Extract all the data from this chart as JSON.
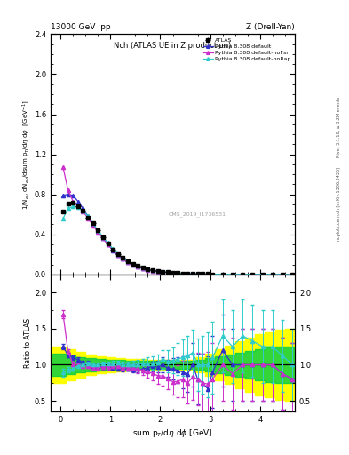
{
  "title_left": "13000 GeV  pp",
  "title_right": "Z (Drell-Yan)",
  "plot_title": "Nch (ATLAS UE in Z production)",
  "xlabel": "sum p$_T$/d$\\eta$ d$\\phi$ [GeV]",
  "ylabel_main": "1/N$_{ev}$ dN$_{ev}$/dsum p$_T$/d$\\eta$ d$\\phi$  [GeV$^{-1}$]",
  "ylabel_ratio": "Ratio to ATLAS",
  "right_label_top": "Rivet 3.1.10, ≥ 3.2M events",
  "right_label_bot": "mcplots.cern.ch [arXiv:1306.3436]",
  "watermark": "CMS_2019_I1736531",
  "xlim": [
    -0.2,
    4.7
  ],
  "ylim_main": [
    0.0,
    2.4
  ],
  "ylim_ratio": [
    0.35,
    2.25
  ],
  "atlas_x": [
    0.05,
    0.15,
    0.25,
    0.35,
    0.45,
    0.55,
    0.65,
    0.75,
    0.85,
    0.95,
    1.05,
    1.15,
    1.25,
    1.35,
    1.45,
    1.55,
    1.65,
    1.75,
    1.85,
    1.95,
    2.05,
    2.15,
    2.25,
    2.35,
    2.45,
    2.55,
    2.65,
    2.75,
    2.85,
    2.95,
    3.05,
    3.25,
    3.45,
    3.65,
    3.85,
    4.05,
    4.25,
    4.45,
    4.65
  ],
  "atlas_y": [
    0.63,
    0.71,
    0.72,
    0.68,
    0.64,
    0.57,
    0.51,
    0.44,
    0.37,
    0.31,
    0.25,
    0.2,
    0.165,
    0.132,
    0.105,
    0.083,
    0.066,
    0.052,
    0.041,
    0.033,
    0.026,
    0.021,
    0.017,
    0.013,
    0.01,
    0.008,
    0.006,
    0.005,
    0.004,
    0.003,
    0.002,
    0.001,
    0.0008,
    0.0005,
    0.0003,
    0.0002,
    0.00012,
    8e-05,
    5e-05
  ],
  "atlas_xerr": [
    0.05,
    0.05,
    0.05,
    0.05,
    0.05,
    0.05,
    0.05,
    0.05,
    0.05,
    0.05,
    0.05,
    0.05,
    0.05,
    0.05,
    0.05,
    0.05,
    0.05,
    0.05,
    0.05,
    0.05,
    0.05,
    0.05,
    0.05,
    0.05,
    0.05,
    0.05,
    0.05,
    0.05,
    0.05,
    0.05,
    0.05,
    0.15,
    0.15,
    0.15,
    0.15,
    0.15,
    0.15,
    0.15,
    0.15
  ],
  "atlas_yerr": [
    0.018,
    0.018,
    0.018,
    0.018,
    0.016,
    0.015,
    0.013,
    0.011,
    0.009,
    0.007,
    0.006,
    0.005,
    0.004,
    0.003,
    0.003,
    0.002,
    0.002,
    0.0015,
    0.0012,
    0.001,
    0.0008,
    0.0007,
    0.0006,
    0.0005,
    0.0004,
    0.0003,
    0.0002,
    0.00018,
    0.00012,
    0.0001,
    7e-05,
    5e-05,
    4e-05,
    3e-05,
    2e-05,
    1e-05,
    8e-06,
    5e-06,
    3e-06
  ],
  "py_default_x": [
    0.05,
    0.15,
    0.25,
    0.35,
    0.45,
    0.55,
    0.65,
    0.75,
    0.85,
    0.95,
    1.05,
    1.15,
    1.25,
    1.35,
    1.45,
    1.55,
    1.65,
    1.75,
    1.85,
    1.95,
    2.05,
    2.15,
    2.25,
    2.35,
    2.45,
    2.55,
    2.65,
    2.75,
    2.85,
    2.95,
    3.05,
    3.25,
    3.45,
    3.65,
    3.85,
    4.05,
    4.25,
    4.45,
    4.65
  ],
  "py_default_y": [
    0.79,
    0.8,
    0.79,
    0.73,
    0.66,
    0.58,
    0.5,
    0.43,
    0.36,
    0.3,
    0.24,
    0.19,
    0.155,
    0.125,
    0.098,
    0.078,
    0.062,
    0.05,
    0.04,
    0.032,
    0.026,
    0.02,
    0.016,
    0.012,
    0.009,
    0.007,
    0.006,
    0.004,
    0.003,
    0.002,
    0.0018,
    0.0012,
    0.0008,
    0.0005,
    0.0003,
    0.0002,
    0.00012,
    7e-05,
    4e-05
  ],
  "py_nofsr_x": [
    0.05,
    0.15,
    0.25,
    0.35,
    0.45,
    0.55,
    0.65,
    0.75,
    0.85,
    0.95,
    1.05,
    1.15,
    1.25,
    1.35,
    1.45,
    1.55,
    1.65,
    1.75,
    1.85,
    1.95,
    2.05,
    2.15,
    2.25,
    2.35,
    2.45,
    2.55,
    2.65,
    2.75,
    2.85,
    2.95,
    3.05,
    3.25,
    3.45,
    3.65,
    3.85,
    4.05,
    4.25,
    4.45,
    4.65
  ],
  "py_nofsr_y": [
    1.07,
    0.84,
    0.73,
    0.68,
    0.63,
    0.56,
    0.49,
    0.42,
    0.36,
    0.3,
    0.245,
    0.196,
    0.158,
    0.127,
    0.1,
    0.078,
    0.061,
    0.047,
    0.036,
    0.028,
    0.022,
    0.017,
    0.013,
    0.01,
    0.008,
    0.006,
    0.005,
    0.004,
    0.003,
    0.0022,
    0.0016,
    0.001,
    0.0007,
    0.0005,
    0.0003,
    0.0002,
    0.00012,
    7e-05,
    4e-05
  ],
  "py_norap_x": [
    0.05,
    0.15,
    0.25,
    0.35,
    0.45,
    0.55,
    0.65,
    0.75,
    0.85,
    0.95,
    1.05,
    1.15,
    1.25,
    1.35,
    1.45,
    1.55,
    1.65,
    1.75,
    1.85,
    1.95,
    2.05,
    2.15,
    2.25,
    2.35,
    2.45,
    2.55,
    2.65,
    2.75,
    2.85,
    2.95,
    3.05,
    3.25,
    3.45,
    3.65,
    3.85,
    4.05,
    4.25,
    4.45,
    4.65
  ],
  "py_norap_y": [
    0.56,
    0.66,
    0.68,
    0.67,
    0.64,
    0.58,
    0.51,
    0.44,
    0.375,
    0.315,
    0.255,
    0.205,
    0.165,
    0.133,
    0.105,
    0.084,
    0.067,
    0.053,
    0.042,
    0.034,
    0.028,
    0.022,
    0.018,
    0.014,
    0.011,
    0.009,
    0.007,
    0.005,
    0.004,
    0.003,
    0.0022,
    0.0014,
    0.001,
    0.0007,
    0.0004,
    0.00025,
    0.00015,
    9e-05,
    5e-05
  ],
  "color_atlas": "#000000",
  "color_default": "#3030cc",
  "color_nofsr": "#cc30cc",
  "color_norap": "#30cccc",
  "color_band_yellow": "#ffff00",
  "color_band_green": "#00cc44",
  "ratio_x": [
    0.05,
    0.15,
    0.25,
    0.35,
    0.45,
    0.55,
    0.65,
    0.75,
    0.85,
    0.95,
    1.05,
    1.15,
    1.25,
    1.35,
    1.45,
    1.55,
    1.65,
    1.75,
    1.85,
    1.95,
    2.05,
    2.15,
    2.25,
    2.35,
    2.45,
    2.55,
    2.65,
    2.75,
    2.85,
    2.95,
    3.05,
    3.25,
    3.45,
    3.65,
    3.85,
    4.05,
    4.25,
    4.45,
    4.65
  ],
  "ratio_default_y": [
    1.25,
    1.13,
    1.1,
    1.07,
    1.03,
    1.02,
    0.98,
    0.98,
    0.97,
    0.97,
    0.96,
    0.95,
    0.94,
    0.95,
    0.93,
    0.94,
    0.94,
    0.96,
    0.976,
    0.97,
    1.0,
    0.952,
    0.941,
    0.923,
    0.9,
    0.875,
    1.0,
    0.8,
    0.75,
    0.667,
    0.9,
    1.2,
    1.0,
    1.0,
    1.0,
    1.0,
    1.0,
    0.875,
    0.8
  ],
  "ratio_default_yerr": [
    0.04,
    0.03,
    0.03,
    0.03,
    0.03,
    0.03,
    0.03,
    0.03,
    0.03,
    0.03,
    0.03,
    0.03,
    0.035,
    0.035,
    0.04,
    0.04,
    0.05,
    0.06,
    0.07,
    0.08,
    0.1,
    0.12,
    0.15,
    0.18,
    0.22,
    0.25,
    0.3,
    0.35,
    0.4,
    0.45,
    0.5,
    0.5,
    0.5,
    0.5,
    0.5,
    0.5,
    0.5,
    0.5,
    0.5
  ],
  "ratio_nofsr_y": [
    1.7,
    1.18,
    1.01,
    1.0,
    0.984,
    0.982,
    0.961,
    0.955,
    0.973,
    0.968,
    0.98,
    0.98,
    0.958,
    0.962,
    0.952,
    0.94,
    0.924,
    0.904,
    0.878,
    0.848,
    0.846,
    0.81,
    0.765,
    0.769,
    0.8,
    0.75,
    0.833,
    0.8,
    0.75,
    0.733,
    0.8,
    1.0,
    0.875,
    1.0,
    1.0,
    1.0,
    1.0,
    0.875,
    0.8
  ],
  "ratio_nofsr_yerr": [
    0.05,
    0.04,
    0.03,
    0.03,
    0.03,
    0.03,
    0.03,
    0.03,
    0.03,
    0.03,
    0.035,
    0.035,
    0.04,
    0.04,
    0.05,
    0.06,
    0.07,
    0.08,
    0.09,
    0.11,
    0.13,
    0.15,
    0.18,
    0.22,
    0.25,
    0.28,
    0.32,
    0.36,
    0.4,
    0.45,
    0.5,
    0.5,
    0.5,
    0.5,
    0.5,
    0.5,
    0.5,
    0.5,
    0.5
  ],
  "ratio_norap_y": [
    0.89,
    0.93,
    0.944,
    0.985,
    1.0,
    1.018,
    1.0,
    1.0,
    1.014,
    1.016,
    1.02,
    1.025,
    1.0,
    1.008,
    1.0,
    1.012,
    1.015,
    1.019,
    1.024,
    1.03,
    1.077,
    1.048,
    1.059,
    1.077,
    1.1,
    1.125,
    1.167,
    1.0,
    1.0,
    1.0,
    1.1,
    1.4,
    1.25,
    1.4,
    1.33,
    1.25,
    1.25,
    1.125,
    1.0
  ],
  "ratio_norap_yerr": [
    0.05,
    0.04,
    0.03,
    0.03,
    0.03,
    0.03,
    0.03,
    0.03,
    0.03,
    0.03,
    0.03,
    0.035,
    0.04,
    0.04,
    0.05,
    0.06,
    0.07,
    0.08,
    0.09,
    0.11,
    0.13,
    0.15,
    0.18,
    0.22,
    0.25,
    0.28,
    0.32,
    0.36,
    0.4,
    0.45,
    0.5,
    0.5,
    0.5,
    0.5,
    0.5,
    0.5,
    0.5,
    0.5,
    0.5
  ],
  "band_x": [
    -0.2,
    0.1,
    0.3,
    0.5,
    0.7,
    0.9,
    1.1,
    1.3,
    1.5,
    1.7,
    1.9,
    2.1,
    2.3,
    2.5,
    2.7,
    2.9,
    3.1,
    3.3,
    3.5,
    3.7,
    3.9,
    4.1,
    4.3,
    4.5,
    4.7
  ],
  "band_yellow_lo": [
    0.75,
    0.78,
    0.82,
    0.86,
    0.88,
    0.9,
    0.91,
    0.92,
    0.92,
    0.93,
    0.93,
    0.93,
    0.93,
    0.93,
    0.9,
    0.85,
    0.78,
    0.73,
    0.68,
    0.63,
    0.58,
    0.55,
    0.52,
    0.5,
    0.5
  ],
  "band_yellow_hi": [
    1.25,
    1.22,
    1.18,
    1.14,
    1.12,
    1.1,
    1.09,
    1.08,
    1.08,
    1.07,
    1.07,
    1.07,
    1.07,
    1.07,
    1.1,
    1.15,
    1.22,
    1.27,
    1.32,
    1.37,
    1.42,
    1.45,
    1.48,
    1.5,
    1.5
  ],
  "band_green_lo": [
    0.85,
    0.87,
    0.89,
    0.91,
    0.92,
    0.93,
    0.935,
    0.94,
    0.94,
    0.945,
    0.945,
    0.945,
    0.945,
    0.945,
    0.93,
    0.91,
    0.88,
    0.855,
    0.83,
    0.805,
    0.78,
    0.765,
    0.752,
    0.75,
    0.75
  ],
  "band_green_hi": [
    1.15,
    1.13,
    1.11,
    1.09,
    1.08,
    1.07,
    1.065,
    1.06,
    1.06,
    1.055,
    1.055,
    1.055,
    1.055,
    1.055,
    1.07,
    1.09,
    1.12,
    1.145,
    1.17,
    1.195,
    1.22,
    1.235,
    1.248,
    1.25,
    1.25
  ]
}
